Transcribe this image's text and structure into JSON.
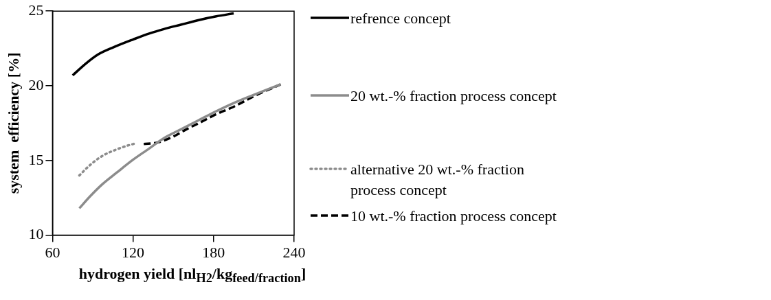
{
  "chart_data": {
    "type": "line",
    "xlabel": "hydrogen yield [nl$_{H2}$/kg$_{feed/fraction}$]",
    "ylabel": "system  efficiency [%]",
    "xlim": [
      60,
      240
    ],
    "xticks": [
      60,
      120,
      180,
      240
    ],
    "ylim": [
      10,
      25
    ],
    "yticks": [
      10,
      15,
      20,
      25
    ],
    "grid": false,
    "legend": "right",
    "marker": "none",
    "series": [
      {
        "name": "refrence concept",
        "color": "#000000",
        "line_style": "solid",
        "x": [
          75,
          85,
          94,
          106,
          120,
          132,
          143,
          156,
          169,
          182,
          195
        ],
        "values": [
          20.7,
          21.5,
          22.1,
          22.6,
          23.1,
          23.5,
          23.8,
          24.1,
          24.4,
          24.65,
          24.85
        ]
      },
      {
        "name": "20 wt.-% fraction process concept",
        "color": "#8c8c8c",
        "line_style": "solid",
        "x": [
          80,
          88,
          97,
          108,
          120,
          132,
          143,
          156,
          169,
          182,
          195,
          210,
          230
        ],
        "values": [
          11.8,
          12.6,
          13.4,
          14.2,
          15.05,
          15.8,
          16.5,
          17.1,
          17.7,
          18.3,
          18.85,
          19.4,
          20.1
        ]
      },
      {
        "name": "alternative 20 wt.-% fraction process concept",
        "color": "#8c8c8c",
        "line_style": "dotted",
        "x": [
          80,
          88,
          97,
          108,
          116,
          122
        ],
        "values": [
          14.0,
          14.7,
          15.3,
          15.75,
          16.0,
          16.15
        ]
      },
      {
        "name": "10 wt.-% fraction process concept",
        "color": "#000000",
        "line_style": "dashed",
        "x": [
          128,
          138,
          150,
          160,
          169,
          182,
          195,
          210,
          230
        ],
        "values": [
          16.1,
          16.2,
          16.6,
          17.1,
          17.5,
          18.1,
          18.6,
          19.3,
          20.1
        ]
      }
    ]
  }
}
